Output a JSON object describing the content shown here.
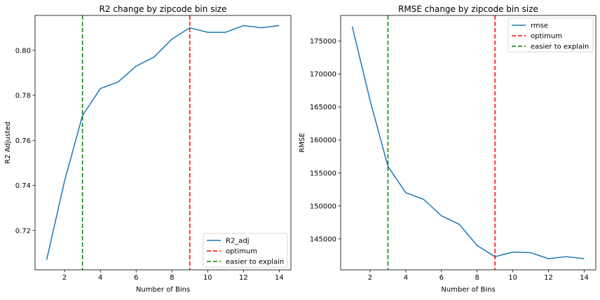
{
  "chart_data": [
    {
      "type": "line",
      "title": "R2 change by zipcode bin size",
      "xlabel": "Number of Bins",
      "ylabel": "R2 Adjusted",
      "xlim": [
        0.35,
        14.65
      ],
      "ylim": [
        0.7025,
        0.8155
      ],
      "xticks": [
        2,
        4,
        6,
        8,
        10,
        12,
        14
      ],
      "xtick_labels": [
        "2",
        "4",
        "6",
        "8",
        "10",
        "12",
        "14"
      ],
      "yticks": [
        0.72,
        0.74,
        0.76,
        0.78,
        0.8
      ],
      "ytick_labels": [
        "0.72",
        "0.74",
        "0.76",
        "0.78",
        "0.80"
      ],
      "grid": false,
      "legend_position": "lower-right",
      "series": [
        {
          "name": "R2_adj",
          "color": "#1f77b4",
          "x": [
            1,
            2,
            3,
            4,
            5,
            6,
            7,
            8,
            9,
            10,
            11,
            12,
            13,
            14
          ],
          "y": [
            0.707,
            0.742,
            0.771,
            0.783,
            0.786,
            0.793,
            0.797,
            0.805,
            0.81,
            0.808,
            0.808,
            0.811,
            0.81,
            0.811
          ]
        }
      ],
      "vlines": [
        {
          "name": "optimum",
          "x": 9,
          "color": "#ff0000"
        },
        {
          "name": "easier to explain",
          "x": 3,
          "color": "#008000"
        }
      ]
    },
    {
      "type": "line",
      "title": "RMSE change by zipcode bin size",
      "xlabel": "Number of Bins",
      "ylabel": "RMSE",
      "xlim": [
        0.35,
        14.65
      ],
      "ylim": [
        140300,
        178900
      ],
      "xticks": [
        2,
        4,
        6,
        8,
        10,
        12,
        14
      ],
      "xtick_labels": [
        "2",
        "4",
        "6",
        "8",
        "10",
        "12",
        "14"
      ],
      "yticks": [
        145000,
        150000,
        155000,
        160000,
        165000,
        170000,
        175000
      ],
      "ytick_labels": [
        "145000",
        "150000",
        "155000",
        "160000",
        "165000",
        "170000",
        "175000"
      ],
      "grid": false,
      "legend_position": "upper-right",
      "series": [
        {
          "name": "rmse",
          "color": "#1f77b4",
          "x": [
            1,
            2,
            3,
            4,
            5,
            6,
            7,
            8,
            9,
            10,
            11,
            12,
            13,
            14
          ],
          "y": [
            177200,
            166000,
            156000,
            152000,
            151000,
            148500,
            147200,
            144000,
            142300,
            143000,
            142900,
            142000,
            142300,
            142000
          ]
        }
      ],
      "vlines": [
        {
          "name": "optimum",
          "x": 9,
          "color": "#ff0000"
        },
        {
          "name": "easier to explain",
          "x": 3,
          "color": "#008000"
        }
      ]
    }
  ]
}
